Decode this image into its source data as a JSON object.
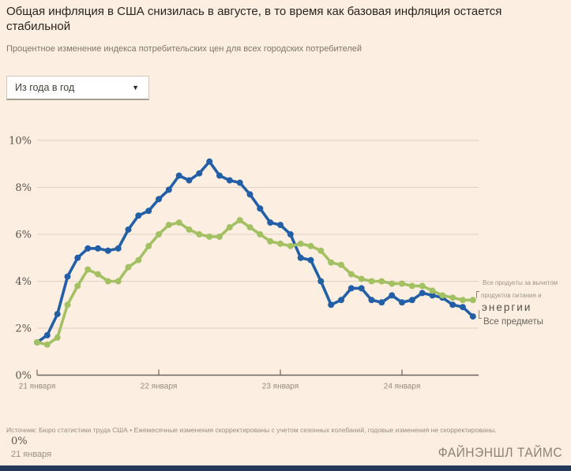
{
  "title": "Общая инфляция в США снизилась в августе, в то время как базовая инфляция остается стабильной",
  "subtitle": "Процентное изменение индекса потребительских цен для всех городских потребителей",
  "dropdown": {
    "value": "Из года в год"
  },
  "chart_data": {
    "type": "line",
    "ylim": [
      0,
      10
    ],
    "grid": true,
    "y_ticks": [
      {
        "label": "10%",
        "value": 10
      },
      {
        "label": "8%",
        "value": 8
      },
      {
        "label": "6%",
        "value": 6
      },
      {
        "label": "4%",
        "value": 4
      },
      {
        "label": "2%",
        "value": 2
      },
      {
        "label": "0%",
        "value": 0
      }
    ],
    "x_ticks": [
      {
        "label": "21 января",
        "month_index": 0
      },
      {
        "label": "22 января",
        "month_index": 12
      },
      {
        "label": "23 января",
        "month_index": 24
      },
      {
        "label": "24 января",
        "month_index": 36
      }
    ],
    "x_unit": "month",
    "series": [
      {
        "name": "Все предметы",
        "color": "#235fa7",
        "values": [
          1.4,
          1.7,
          2.6,
          4.2,
          5.0,
          5.4,
          5.4,
          5.3,
          5.4,
          6.2,
          6.8,
          7.0,
          7.5,
          7.9,
          8.5,
          8.3,
          8.6,
          9.1,
          8.5,
          8.3,
          8.2,
          7.7,
          7.1,
          6.5,
          6.4,
          6.0,
          5.0,
          4.9,
          4.0,
          3.0,
          3.2,
          3.7,
          3.7,
          3.2,
          3.1,
          3.4,
          3.1,
          3.2,
          3.5,
          3.4,
          3.3,
          3.0,
          2.9,
          2.5
        ]
      },
      {
        "name": "Все продукты за вычетом продуктов питания и энергии",
        "color": "#a3c163",
        "values": [
          1.4,
          1.3,
          1.6,
          3.0,
          3.8,
          4.5,
          4.3,
          4.0,
          4.0,
          4.6,
          4.9,
          5.5,
          6.0,
          6.4,
          6.5,
          6.2,
          6.0,
          5.9,
          5.9,
          6.3,
          6.6,
          6.3,
          6.0,
          5.7,
          5.6,
          5.5,
          5.6,
          5.5,
          5.3,
          4.8,
          4.7,
          4.3,
          4.1,
          4.0,
          4.0,
          3.9,
          3.9,
          3.8,
          3.8,
          3.6,
          3.4,
          3.3,
          3.2,
          3.2
        ]
      }
    ],
    "labels": {
      "core_line1": "Все продукты за вычетом",
      "core_line2": "продуктов питания и",
      "core_line3": "энергии",
      "all_items": "Все предметы"
    },
    "legend_position": "right-of-line-ends"
  },
  "footer": {
    "source": "Источник: Бюро статистики труда США • Ежемесячные изменения скорректированы с учетом сезонных колебаний, годовые изменения не скорректированы.",
    "stray_zero": "0%",
    "stray_date": "21 января",
    "brand": "ФАЙНЭНШЛ ТАЙМС"
  },
  "colors": {
    "background": "#fcefe2",
    "all_items_line": "#235fa7",
    "core_line": "#a3c163",
    "gridline": "#ddd2c4",
    "axis": "#6b655e",
    "bottom_bar": "#24385a"
  }
}
